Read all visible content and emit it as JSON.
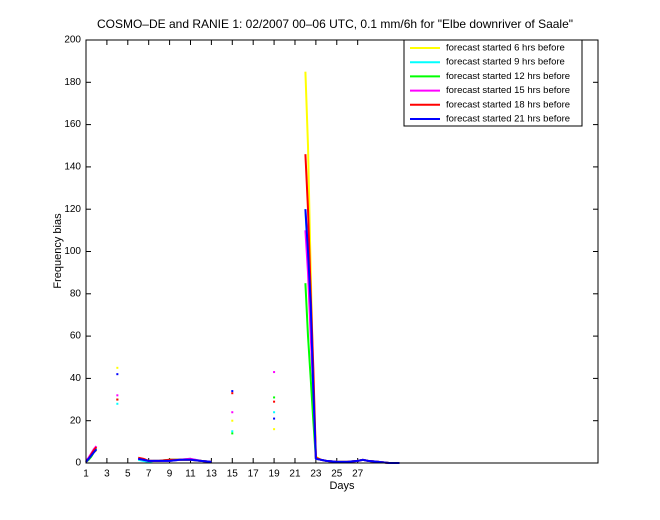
{
  "chart_data": {
    "type": "line",
    "title": "COSMO–DE and RANIE 1: 02/2007 00–06 UTC, 0.1 mm/6h for \"Elbe downriver of Saale\"",
    "x_label": "Days",
    "y_label": "Frequency bias",
    "xlim": [
      1,
      50
    ],
    "ylim": [
      0,
      200
    ],
    "xticks": [
      1,
      3,
      5,
      7,
      9,
      11,
      13,
      15,
      17,
      19,
      21,
      23,
      25,
      27
    ],
    "yticks": [
      0,
      20,
      40,
      60,
      80,
      100,
      120,
      140,
      160,
      180,
      200
    ],
    "legend_position": "upper right",
    "x": [
      1,
      1.25,
      1.5,
      1.75,
      2,
      3,
      4,
      5,
      6,
      6.5,
      7,
      7.5,
      8,
      9,
      10,
      11,
      12,
      13,
      14,
      15,
      17,
      19,
      21,
      22,
      22.25,
      22.5,
      22.75,
      23,
      23.5,
      24,
      25,
      26,
      27,
      27.5,
      28,
      29,
      30,
      31
    ],
    "series": [
      {
        "name": "forecast started 6 hrs before",
        "color": "#ffff00",
        "values": [
          0.5,
          2,
          3.5,
          5,
          6,
          null,
          45,
          null,
          2,
          1.5,
          1,
          1,
          1,
          1.5,
          1.5,
          1.5,
          1,
          0.5,
          null,
          20,
          null,
          16,
          null,
          185,
          150,
          90,
          40,
          3,
          1.5,
          1,
          0.5,
          0.5,
          1,
          1.5,
          1,
          0.5,
          0,
          0
        ]
      },
      {
        "name": "forecast started 9 hrs before",
        "color": "#00ffff",
        "values": [
          0.5,
          2,
          4,
          5.5,
          7,
          null,
          28,
          null,
          1.5,
          1,
          0.5,
          1,
          1,
          1,
          1.5,
          2,
          1,
          0.5,
          null,
          15,
          null,
          24,
          null,
          120,
          95,
          70,
          30,
          2,
          1.5,
          1,
          0.5,
          0.5,
          1,
          1.5,
          1,
          0.5,
          0,
          0
        ]
      },
      {
        "name": "forecast started 12 hrs before",
        "color": "#00ff00",
        "values": [
          0.5,
          1.5,
          3,
          5,
          6.5,
          null,
          30,
          null,
          2,
          1.5,
          1,
          1,
          1,
          1.5,
          1.5,
          1.5,
          1,
          0.5,
          null,
          14,
          null,
          31,
          null,
          85,
          60,
          40,
          20,
          2,
          1.5,
          1,
          0.5,
          0.5,
          1,
          1.5,
          1,
          0.5,
          0,
          0
        ]
      },
      {
        "name": "forecast started 15 hrs before",
        "color": "#ff00ff",
        "values": [
          1,
          2.5,
          4.5,
          6.5,
          8,
          null,
          32,
          null,
          2,
          1.5,
          1,
          1,
          1,
          1,
          1.5,
          2,
          1,
          0.5,
          null,
          24,
          null,
          43,
          null,
          110,
          90,
          60,
          35,
          2,
          1.5,
          1,
          0.5,
          0.5,
          1,
          1.5,
          1,
          0.5,
          0,
          0
        ]
      },
      {
        "name": "forecast started 18 hrs before",
        "color": "#ff0000",
        "values": [
          0.5,
          2,
          4,
          6,
          7.5,
          null,
          30,
          null,
          2.5,
          2,
          1,
          1,
          1,
          1.5,
          1.5,
          1.5,
          1,
          0.5,
          null,
          33,
          null,
          29,
          null,
          146,
          120,
          80,
          45,
          2.5,
          1.5,
          1,
          0.5,
          0.5,
          1,
          1.5,
          1,
          0.5,
          0,
          0
        ]
      },
      {
        "name": "forecast started 21 hrs before",
        "color": "#0000ff",
        "values": [
          0.5,
          2,
          3.5,
          5,
          6.5,
          null,
          42,
          null,
          2,
          1.5,
          1,
          1,
          1,
          1,
          1.5,
          1.5,
          1,
          0.5,
          null,
          34,
          null,
          21,
          null,
          120,
          100,
          75,
          35,
          2,
          1.5,
          1,
          0.5,
          0.5,
          1,
          1.5,
          1,
          0.5,
          0,
          0
        ]
      }
    ]
  }
}
